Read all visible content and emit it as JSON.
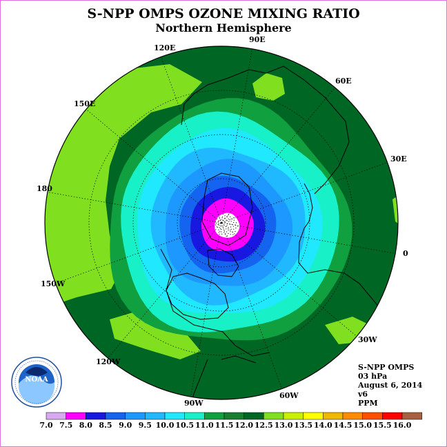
{
  "title": "S-NPP OMPS OZONE MIXING RATIO",
  "subtitle": "Northern Hemisphere",
  "meridian_labels": [
    "90E",
    "60E",
    "30E",
    "0",
    "30W",
    "60W",
    "90W",
    "120W",
    "150W",
    "180",
    "150E",
    "120E"
  ],
  "info": {
    "line1": "S-NPP OMPS",
    "line2": "03 hPa",
    "line3": "August 6, 2014",
    "line4": "v6",
    "line5": "PPM"
  },
  "colorbar": {
    "ticks": [
      "7.0",
      "7.5",
      "8.0",
      "8.5",
      "9.0",
      "9.5",
      "10.0",
      "10.5",
      "11.0",
      "11.5",
      "12.0",
      "12.5",
      "13.0",
      "13.5",
      "14.0",
      "14.5",
      "15.0",
      "15.5",
      "16.0"
    ],
    "colors": [
      "#b070e8",
      "#d8a8f0",
      "#ff00ff",
      "#1818e0",
      "#1464f0",
      "#1c98ff",
      "#20b8ff",
      "#20e8ff",
      "#18f0c8",
      "#10a040",
      "#187e30",
      "#006624",
      "#80e020",
      "#c8f000",
      "#ffff00",
      "#f0b800",
      "#ff8c00",
      "#ff5000",
      "#ff0000",
      "#a86040"
    ]
  },
  "logo": {
    "text": "NOAA",
    "ring_text": "NATIONAL OCEANIC AND ATMOSPHERIC ADMINISTRATION · U.S. DEPARTMENT OF COMMERCE"
  },
  "map": {
    "colors": {
      "outer": "#006624",
      "band_11_5": "#10a040",
      "band_11": "#18f0c8",
      "band_10_5": "#20e8ff",
      "band_10": "#20b8ff",
      "band_9_5": "#1c98ff",
      "band_9": "#1464f0",
      "band_8_5": "#1818e0",
      "band_8": "#ff00ff",
      "polar_gap": "#ffffff",
      "high_12_5": "#80e020"
    }
  }
}
